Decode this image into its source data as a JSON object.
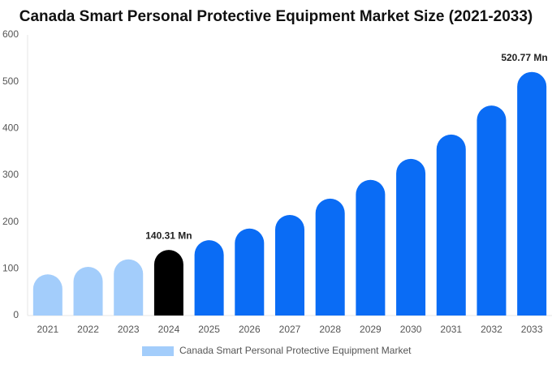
{
  "chart_data": {
    "type": "bar",
    "title": "Canada Smart Personal Protective Equipment Market Size (2021-2033)",
    "categories": [
      "2021",
      "2022",
      "2023",
      "2024",
      "2025",
      "2026",
      "2027",
      "2028",
      "2029",
      "2030",
      "2031",
      "2032",
      "2033"
    ],
    "series": [
      {
        "name": "Canada Smart Personal Protective Equipment Market",
        "color": "#a3cdfb",
        "colors": [
          "#a3cdfb",
          "#a3cdfb",
          "#a3cdfb",
          "#000000",
          "#0a6cf5",
          "#0a6cf5",
          "#0a6cf5",
          "#0a6cf5",
          "#0a6cf5",
          "#0a6cf5",
          "#0a6cf5",
          "#0a6cf5",
          "#0a6cf5"
        ],
        "values": [
          88,
          104,
          120,
          140.31,
          161,
          186,
          215,
          250,
          290,
          335,
          387,
          449,
          520.77
        ],
        "value_labels": [
          null,
          null,
          null,
          "140.31 Mn",
          null,
          null,
          null,
          null,
          null,
          null,
          null,
          null,
          "520.77 Mn"
        ]
      }
    ],
    "ylim": [
      0,
      600
    ],
    "yticks": [
      0,
      100,
      200,
      300,
      400,
      500,
      600
    ],
    "grid": false
  }
}
